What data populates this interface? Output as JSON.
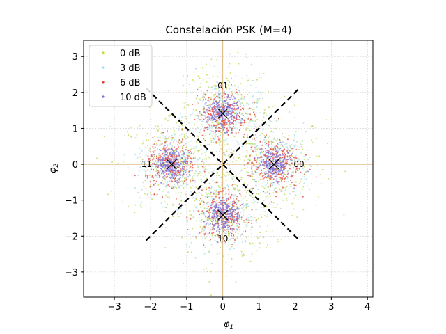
{
  "chart_data": {
    "type": "scatter",
    "title": "Constelación PSK (M=4)",
    "xlabel": "φ1",
    "ylabel": "φ2",
    "xlim": [
      -3.85,
      4.15
    ],
    "ylim": [
      -3.7,
      3.45
    ],
    "xticks": [
      -3,
      -2,
      -1,
      0,
      1,
      2,
      3,
      4
    ],
    "yticks": [
      -3,
      -2,
      -1,
      0,
      1,
      2,
      3
    ],
    "tick_labels_x": [
      "−3",
      "−2",
      "−1",
      "0",
      "1",
      "2",
      "3",
      "4"
    ],
    "tick_labels_y": [
      "−3",
      "−2",
      "−1",
      "0",
      "1",
      "2",
      "3"
    ],
    "grid": true,
    "legend_position": "top-left",
    "symbols": [
      {
        "label": "00",
        "x": 1.414,
        "y": 0
      },
      {
        "label": "01",
        "x": 0,
        "y": 1.414
      },
      {
        "label": "11",
        "x": -1.414,
        "y": 0
      },
      {
        "label": "10",
        "x": 0,
        "y": -1.414
      }
    ],
    "series": [
      {
        "name": "0 dB",
        "color": "#bcd94a",
        "noise_std": 0.71
      },
      {
        "name": "3 dB",
        "color": "#a6dce9",
        "noise_std": 0.5
      },
      {
        "name": "6 dB",
        "color": "#e8433b",
        "noise_std": 0.355
      },
      {
        "name": "10 dB",
        "color": "#7d6fd8",
        "noise_std": 0.22
      }
    ],
    "decision_boundaries": [
      {
        "x": [
          -2.12,
          2.12
        ],
        "y": [
          -2.12,
          2.12
        ]
      },
      {
        "x": [
          -2.12,
          2.12
        ],
        "y": [
          2.12,
          -2.12
        ]
      }
    ],
    "axis_line_color": "#d4a35a"
  }
}
